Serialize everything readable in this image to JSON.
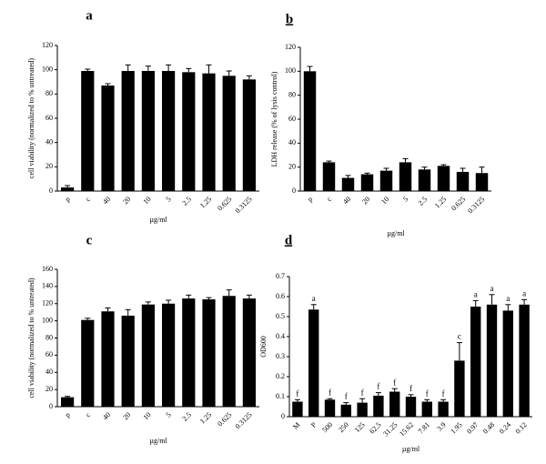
{
  "chart_data": [
    {
      "type": "bar",
      "panel_label": "a",
      "panel_label_underline": false,
      "color": "#000000",
      "ylabel": "cell viability (normalized to % untreated)",
      "xlabel": "µg/ml",
      "categories": [
        "p",
        "c",
        "40",
        "20",
        "10",
        "5",
        "2.5",
        "1.25",
        "0.625",
        "0.3125"
      ],
      "values": [
        3,
        99,
        87,
        99,
        99,
        99,
        98,
        97,
        95,
        92
      ],
      "errors": [
        1.5,
        1.5,
        1.5,
        5,
        4,
        5,
        3,
        7,
        4,
        3
      ],
      "ylim": [
        0,
        120
      ],
      "yticks": [
        0,
        20,
        40,
        60,
        80,
        100,
        120
      ]
    },
    {
      "type": "bar",
      "panel_label": "b",
      "panel_label_underline": true,
      "color": "#000000",
      "ylabel": "LDH release (% of lysis control)",
      "xlabel": "µg/ml",
      "categories": [
        "p",
        "c",
        "40",
        "20",
        "10",
        "5",
        "2.5",
        "1.25",
        "0.625",
        "0.3125"
      ],
      "values": [
        100,
        24,
        11,
        14,
        17,
        24,
        18,
        21,
        16,
        15
      ],
      "errors": [
        4,
        1,
        2,
        1,
        2,
        3,
        2,
        1,
        3,
        5
      ],
      "ylim": [
        0,
        120
      ],
      "yticks": [
        0,
        20,
        40,
        60,
        80,
        100,
        120
      ]
    },
    {
      "type": "bar",
      "panel_label": "c",
      "panel_label_underline": false,
      "color": "#000000",
      "ylabel": "cell viability (normalized to % untreated)",
      "xlabel": "µg/ml",
      "categories": [
        "p",
        "c",
        "40",
        "20",
        "10",
        "5",
        "2.5",
        "1.25",
        "0.625",
        "0.3125"
      ],
      "values": [
        11,
        101,
        111,
        106,
        119,
        120,
        126,
        125,
        129,
        126
      ],
      "errors": [
        1,
        2,
        4,
        7,
        3,
        4,
        4,
        2,
        7,
        4
      ],
      "ylim": [
        0,
        160
      ],
      "yticks": [
        0,
        20,
        40,
        60,
        80,
        100,
        120,
        140,
        160
      ]
    },
    {
      "type": "bar",
      "panel_label": "d",
      "panel_label_underline": true,
      "color": "#000000",
      "ylabel": "OD600",
      "xlabel": "µg/ml",
      "categories": [
        "M",
        "P",
        "500",
        "250",
        "125",
        "62.5",
        "31.25",
        "15.62",
        "7.81",
        "3.9",
        "1.95",
        "0.97",
        "0.48",
        "0.24",
        "0.12"
      ],
      "values": [
        0.075,
        0.535,
        0.085,
        0.06,
        0.07,
        0.105,
        0.125,
        0.1,
        0.075,
        0.075,
        0.28,
        0.55,
        0.56,
        0.53,
        0.56
      ],
      "errors": [
        0.01,
        0.025,
        0.005,
        0.01,
        0.02,
        0.015,
        0.015,
        0.01,
        0.01,
        0.01,
        0.09,
        0.03,
        0.05,
        0.03,
        0.025
      ],
      "bar_labels": [
        "f",
        "a",
        "f",
        "f",
        "f",
        "f",
        "f",
        "f",
        "f",
        "f",
        "c",
        "a",
        "a",
        "a",
        "a"
      ],
      "ylim": [
        0,
        0.7
      ],
      "yticks": [
        0,
        0.1,
        0.2,
        0.3,
        0.4,
        0.5,
        0.6,
        0.7
      ]
    }
  ]
}
